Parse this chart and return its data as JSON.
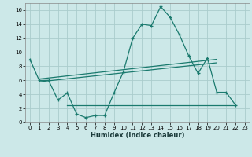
{
  "xlabel": "Humidex (Indice chaleur)",
  "background_color": "#cce8e8",
  "grid_color": "#aacccc",
  "line_color": "#1a7a6e",
  "xlim": [
    -0.5,
    23.5
  ],
  "ylim": [
    0,
    17
  ],
  "xticks": [
    0,
    1,
    2,
    3,
    4,
    5,
    6,
    7,
    8,
    9,
    10,
    11,
    12,
    13,
    14,
    15,
    16,
    17,
    18,
    19,
    20,
    21,
    22,
    23
  ],
  "yticks": [
    0,
    2,
    4,
    6,
    8,
    10,
    12,
    14,
    16
  ],
  "curve_x": [
    0,
    1,
    2,
    3,
    4,
    5,
    6,
    7,
    8,
    9,
    10,
    11,
    12,
    13,
    14,
    15,
    16,
    17,
    18,
    19,
    20,
    21,
    22
  ],
  "curve_y": [
    9,
    6,
    6,
    3.2,
    4.2,
    1.2,
    0.7,
    1.0,
    1.0,
    4.2,
    7.2,
    12.0,
    14.0,
    13.8,
    16.5,
    15.0,
    12.5,
    9.5,
    7.0,
    9.2,
    4.3,
    4.3,
    2.5
  ],
  "line1_x": [
    1,
    20
  ],
  "line1_y": [
    6.2,
    9.0
  ],
  "line2_x": [
    1,
    20
  ],
  "line2_y": [
    5.8,
    8.5
  ],
  "line3_x": [
    4,
    22
  ],
  "line3_y": [
    2.5,
    2.5
  ],
  "fontsize_ticks": 5,
  "fontsize_xlabel": 6
}
